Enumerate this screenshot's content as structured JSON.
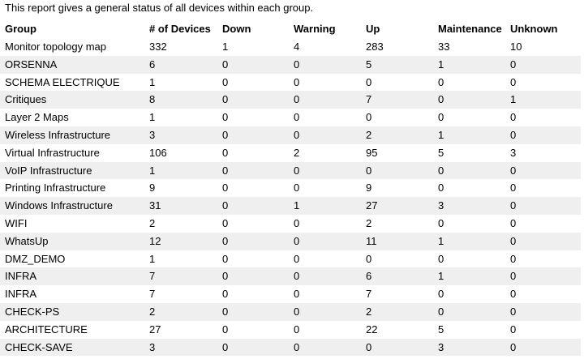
{
  "intro": "This report gives a general status of all devices within each group.",
  "table": {
    "headers": [
      "Group",
      "# of Devices",
      "Down",
      "Warning",
      "Up",
      "Maintenance",
      "Unknown"
    ],
    "rows": [
      [
        "Monitor topology map",
        "332",
        "1",
        "4",
        "283",
        "33",
        "10"
      ],
      [
        "ORSENNA",
        "6",
        "0",
        "0",
        "5",
        "1",
        "0"
      ],
      [
        "SCHEMA ELECTRIQUE",
        "1",
        "0",
        "0",
        "0",
        "0",
        "0"
      ],
      [
        "Critiques",
        "8",
        "0",
        "0",
        "7",
        "0",
        "1"
      ],
      [
        "Layer 2 Maps",
        "1",
        "0",
        "0",
        "0",
        "0",
        "0"
      ],
      [
        "Wireless Infrastructure",
        "3",
        "0",
        "0",
        "2",
        "1",
        "0"
      ],
      [
        "Virtual Infrastructure",
        "106",
        "0",
        "2",
        "95",
        "5",
        "3"
      ],
      [
        "VoIP Infrastructure",
        "1",
        "0",
        "0",
        "0",
        "0",
        "0"
      ],
      [
        "Printing Infrastructure",
        "9",
        "0",
        "0",
        "9",
        "0",
        "0"
      ],
      [
        "Windows Infrastructure",
        "31",
        "0",
        "1",
        "27",
        "3",
        "0"
      ],
      [
        "WIFI",
        "2",
        "0",
        "0",
        "2",
        "0",
        "0"
      ],
      [
        "WhatsUp",
        "12",
        "0",
        "0",
        "11",
        "1",
        "0"
      ],
      [
        "DMZ_DEMO",
        "1",
        "0",
        "0",
        "0",
        "0",
        "0"
      ],
      [
        "INFRA",
        "7",
        "0",
        "0",
        "6",
        "1",
        "0"
      ],
      [
        "INFRA",
        "7",
        "0",
        "0",
        "7",
        "0",
        "0"
      ],
      [
        "CHECK-PS",
        "2",
        "0",
        "0",
        "2",
        "0",
        "0"
      ],
      [
        "ARCHITECTURE",
        "27",
        "0",
        "0",
        "22",
        "5",
        "0"
      ],
      [
        "CHECK-SAVE",
        "3",
        "0",
        "0",
        "0",
        "3",
        "0"
      ]
    ]
  }
}
